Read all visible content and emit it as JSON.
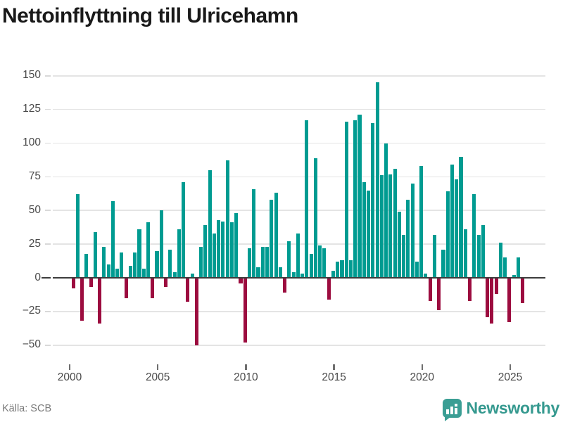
{
  "header": {
    "title": "Nettoinflyttning till Ulricehamn"
  },
  "footer": {
    "source": "Källa: SCB",
    "brand": "Newsworthy"
  },
  "colors": {
    "positive_bar": "#009b91",
    "negative_bar": "#9c0c3f",
    "zero_axis": "#3c3c3c",
    "gridline": "#e4e4e4",
    "tick_label": "#4a4a4a",
    "title": "#191919",
    "source_text": "#7a7a7a",
    "brand_teal": "#3a9e94"
  },
  "chart_data": {
    "type": "bar",
    "title": "Nettoinflyttning till Ulricehamn",
    "frequency": "quarterly",
    "start": "2000-Q1",
    "end": "2025-Q3",
    "values": [
      -8,
      62,
      -32,
      18,
      -7,
      34,
      -34,
      23,
      10,
      57,
      7,
      19,
      -15,
      9,
      19,
      36,
      7,
      41,
      -15,
      20,
      50,
      -7,
      21,
      4,
      36,
      71,
      -18,
      3,
      -50,
      23,
      39,
      80,
      33,
      43,
      42,
      87,
      41,
      48,
      -4,
      -48,
      22,
      66,
      8,
      23,
      23,
      58,
      63,
      8,
      -11,
      27,
      4,
      33,
      3,
      117,
      18,
      89,
      24,
      22,
      -16,
      5,
      12,
      13,
      116,
      13,
      117,
      121,
      71,
      65,
      115,
      145,
      76,
      100,
      77,
      81,
      49,
      32,
      58,
      70,
      12,
      83,
      3,
      -17,
      32,
      -24,
      21,
      64,
      84,
      73,
      90,
      36,
      -17,
      62,
      32,
      39,
      -29,
      -34,
      -12,
      26,
      15,
      -33,
      2,
      15,
      -19
    ],
    "y_ticks": [
      150,
      125,
      100,
      75,
      50,
      25,
      0,
      -25,
      -50
    ],
    "y_tick_labels": [
      "150",
      "125",
      "100",
      "75",
      "50",
      "25",
      "0",
      "−25",
      "−50"
    ],
    "x_tick_years": [
      2000,
      2005,
      2010,
      2015,
      2020,
      2025
    ],
    "xlabel": "",
    "ylabel": "",
    "ylim": [
      -62,
      155
    ],
    "grid": "horizontal",
    "legend": "none"
  }
}
